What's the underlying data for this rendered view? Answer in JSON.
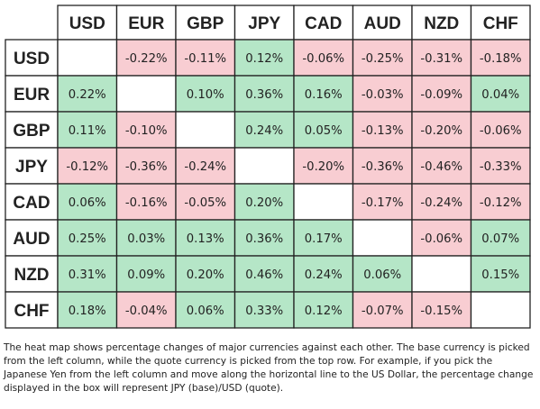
{
  "chart_data": {
    "type": "heatmap",
    "title": "",
    "columns": [
      "USD",
      "EUR",
      "GBP",
      "JPY",
      "CAD",
      "AUD",
      "NZD",
      "CHF"
    ],
    "rows": [
      "USD",
      "EUR",
      "GBP",
      "JPY",
      "CAD",
      "AUD",
      "NZD",
      "CHF"
    ],
    "values": [
      [
        null,
        -0.22,
        -0.11,
        0.12,
        -0.06,
        -0.25,
        -0.31,
        -0.18
      ],
      [
        0.22,
        null,
        0.1,
        0.36,
        0.16,
        -0.03,
        -0.09,
        0.04
      ],
      [
        0.11,
        -0.1,
        null,
        0.24,
        0.05,
        -0.13,
        -0.2,
        -0.06
      ],
      [
        -0.12,
        -0.36,
        -0.24,
        null,
        -0.2,
        -0.36,
        -0.46,
        -0.33
      ],
      [
        0.06,
        -0.16,
        -0.05,
        0.2,
        null,
        -0.17,
        -0.24,
        -0.12
      ],
      [
        0.25,
        0.03,
        0.13,
        0.36,
        0.17,
        null,
        -0.06,
        0.07
      ],
      [
        0.31,
        0.09,
        0.2,
        0.46,
        0.24,
        0.06,
        null,
        0.15
      ],
      [
        0.18,
        -0.04,
        0.06,
        0.33,
        0.12,
        -0.07,
        -0.15,
        null
      ]
    ],
    "labels": [
      [
        "",
        "-0.22%",
        "-0.11%",
        "0.12%",
        "-0.06%",
        "-0.25%",
        "-0.31%",
        "-0.18%"
      ],
      [
        "0.22%",
        "",
        "0.10%",
        "0.36%",
        "0.16%",
        "-0.03%",
        "-0.09%",
        "0.04%"
      ],
      [
        "0.11%",
        "-0.10%",
        "",
        "0.24%",
        "0.05%",
        "-0.13%",
        "-0.20%",
        "-0.06%"
      ],
      [
        "-0.12%",
        "-0.36%",
        "-0.24%",
        "",
        "-0.20%",
        "-0.36%",
        "-0.46%",
        "-0.33%"
      ],
      [
        "0.06%",
        "-0.16%",
        "-0.05%",
        "0.20%",
        "",
        "-0.17%",
        "-0.24%",
        "-0.12%"
      ],
      [
        "0.25%",
        "0.03%",
        "0.13%",
        "0.36%",
        "0.17%",
        "",
        "-0.06%",
        "0.07%"
      ],
      [
        "0.31%",
        "0.09%",
        "0.20%",
        "0.46%",
        "0.24%",
        "0.06%",
        "",
        "0.15%"
      ],
      [
        "0.18%",
        "-0.04%",
        "0.06%",
        "0.33%",
        "0.12%",
        "-0.07%",
        "-0.15%",
        ""
      ]
    ],
    "colors": {
      "positive": "#b5e6c7",
      "negative": "#f8cdd2",
      "neutral": "#ffffff",
      "border": "#222222",
      "text": "#222222"
    }
  },
  "caption": "The heat map shows percentage changes of major currencies against each other. The base currency is picked from the left column, while the quote currency is picked from the top row. For example, if you pick the Japanese Yen from the left column and move along the horizontal line to the US Dollar, the percentage change displayed in the box will represent JPY (base)/USD (quote)."
}
